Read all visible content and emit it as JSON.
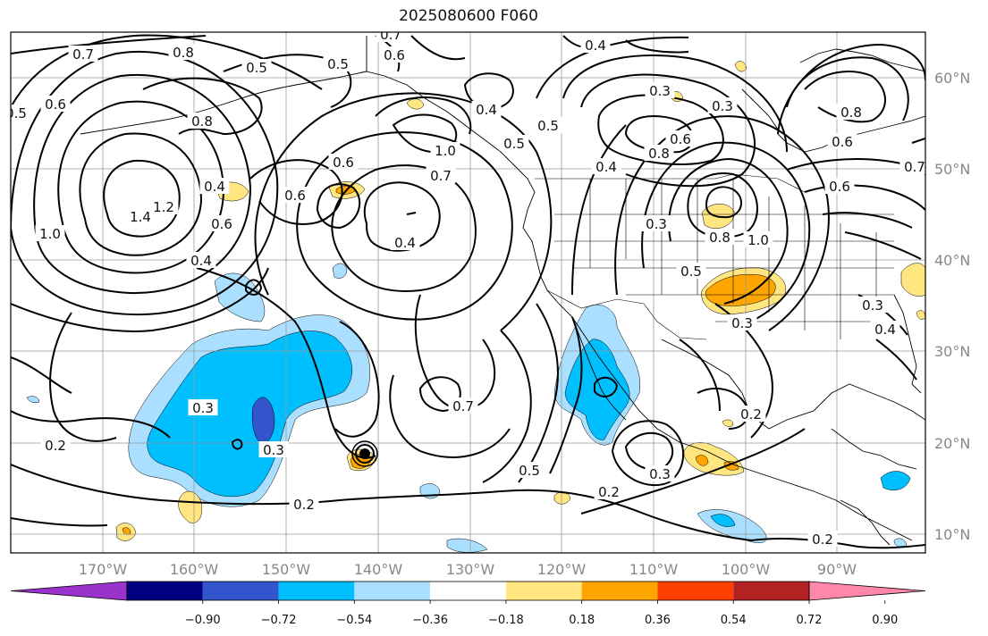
{
  "title": "2025080600 F060",
  "lat_labels": [
    "60°N",
    "50°N",
    "40°N",
    "30°N",
    "20°N",
    "10°N"
  ],
  "lon_labels": [
    "170°W",
    "160°W",
    "150°W",
    "140°W",
    "130°W",
    "120°W",
    "110°W",
    "100°W",
    "90°W"
  ],
  "colorbar": {
    "ticks": [
      "−0.90",
      "−0.72",
      "−0.54",
      "−0.36",
      "−0.18",
      "0.18",
      "0.36",
      "0.54",
      "0.72",
      "0.90"
    ],
    "colors": [
      "#9933cc",
      "#000080",
      "#3355cc",
      "#00bfff",
      "#aadfff",
      "#ffffff",
      "#ffe680",
      "#ffa500",
      "#ff4000",
      "#b22222",
      "#ff88aa"
    ]
  },
  "fill_colors": {
    "neg_light": "#aadfff",
    "neg_mid": "#00bfff",
    "neg_dark": "#3355cc",
    "pos_light": "#ffe680",
    "pos_mid": "#ffa500"
  },
  "contour_labels": [
    {
      "text": "0.7"
    },
    {
      "text": "0.5"
    },
    {
      "text": "0.6"
    },
    {
      "text": "0.8"
    },
    {
      "text": "0.5"
    },
    {
      "text": "0.5"
    },
    {
      "text": "0.7"
    },
    {
      "text": "0.6"
    },
    {
      "text": "0.4"
    },
    {
      "text": "0.4"
    },
    {
      "text": "0.5"
    },
    {
      "text": "0.5"
    },
    {
      "text": "0.3"
    },
    {
      "text": "0.3"
    },
    {
      "text": "0.8"
    },
    {
      "text": "0.6"
    },
    {
      "text": "0.8"
    },
    {
      "text": "0.6"
    },
    {
      "text": "0.7"
    },
    {
      "text": "0.6"
    },
    {
      "text": "1.0"
    },
    {
      "text": "0.7"
    },
    {
      "text": "0.4"
    },
    {
      "text": "0.6"
    },
    {
      "text": "1.4"
    },
    {
      "text": "1.2"
    },
    {
      "text": "1.0"
    },
    {
      "text": "0.6"
    },
    {
      "text": "0.4"
    },
    {
      "text": "0.4"
    },
    {
      "text": "0.3"
    },
    {
      "text": "0.5"
    },
    {
      "text": "0.8"
    },
    {
      "text": "1.0"
    },
    {
      "text": "0.3"
    },
    {
      "text": "0.3"
    },
    {
      "text": "0.2"
    },
    {
      "text": "0.3"
    },
    {
      "text": "0.3"
    },
    {
      "text": "0.2"
    },
    {
      "text": "0.7"
    },
    {
      "text": "0.5"
    },
    {
      "text": "0.4"
    },
    {
      "text": "0.3"
    },
    {
      "text": "0.2"
    },
    {
      "text": "0.2"
    },
    {
      "text": "0.2"
    },
    {
      "text": "0.4"
    },
    {
      "text": "0.8"
    },
    {
      "text": "0.6"
    }
  ]
}
